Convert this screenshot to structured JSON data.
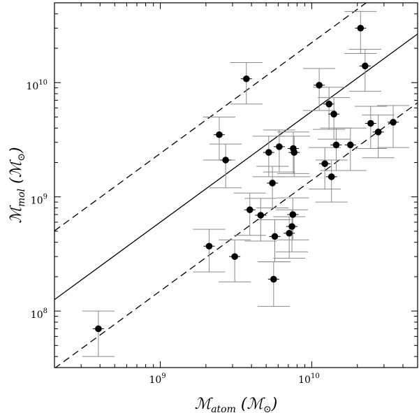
{
  "chart_data": {
    "type": "scatter",
    "title": "",
    "xscale": "log",
    "yscale": "log",
    "xlim": [
      200000000.0,
      50000000000.0
    ],
    "ylim": [
      32000000.0,
      50000000000.0
    ],
    "x_ticks": [
      {
        "value": 1000000000.0,
        "label": "10",
        "exp": "9"
      },
      {
        "value": 10000000000.0,
        "label": "10",
        "exp": "10"
      }
    ],
    "y_ticks": [
      {
        "value": 100000000.0,
        "label": "10",
        "exp": "8"
      },
      {
        "value": 1000000000.0,
        "label": "10",
        "exp": "9"
      },
      {
        "value": 10000000000.0,
        "label": "10",
        "exp": "10"
      }
    ],
    "xlabel": {
      "main": "ℳ",
      "sub": "atom",
      "paren_open": " (ℳ",
      "sub2": "⊙",
      "paren_close": ")"
    },
    "ylabel": {
      "main": "ℳ",
      "sub": "mol",
      "paren_open": " (ℳ",
      "sub2": "⊙",
      "paren_close": ")"
    },
    "fit_line": {
      "style": "solid",
      "slope": 0.97,
      "intercept_at_1e9": 600000000.0
    },
    "scatter_lines": [
      {
        "style": "dashed",
        "slope": 0.97,
        "intercept_at_1e9": 2400000000.0
      },
      {
        "style": "dashed",
        "slope": 0.97,
        "intercept_at_1e9": 150000000.0
      }
    ],
    "points": [
      {
        "x": 390000000.0,
        "y": 70000000.0,
        "ylo": 40000000.0,
        "yhi": 100000000.0
      },
      {
        "x": 2100000000.0,
        "y": 370000000.0,
        "ylo": 220000000.0,
        "yhi": 520000000.0
      },
      {
        "x": 2450000000.0,
        "y": 3500000000.0,
        "ylo": 2100000000.0,
        "yhi": 5000000000.0
      },
      {
        "x": 2700000000.0,
        "y": 2100000000.0,
        "ylo": 1200000000.0,
        "yhi": 2900000000.0
      },
      {
        "x": 3100000000.0,
        "y": 300000000.0,
        "ylo": 180000000.0,
        "yhi": 420000000.0
      },
      {
        "x": 3700000000.0,
        "y": 10800000000.0,
        "ylo": 6500000000.0,
        "yhi": 15000000000.0
      },
      {
        "x": 3900000000.0,
        "y": 770000000.0,
        "ylo": 460000000.0,
        "yhi": 1080000000.0
      },
      {
        "x": 4600000000.0,
        "y": 690000000.0,
        "ylo": 410000000.0,
        "yhi": 970000000.0
      },
      {
        "x": 5200000000.0,
        "y": 2450000000.0,
        "ylo": 1500000000.0,
        "yhi": 3400000000.0
      },
      {
        "x": 5500000000.0,
        "y": 1320000000.0,
        "ylo": 800000000.0,
        "yhi": 1850000000.0
      },
      {
        "x": 5600000000.0,
        "y": 190000000.0,
        "ylo": 110000000.0,
        "yhi": 270000000.0
      },
      {
        "x": 5700000000.0,
        "y": 450000000.0,
        "ylo": 270000000.0,
        "yhi": 630000000.0
      },
      {
        "x": 6100000000.0,
        "y": 2750000000.0,
        "ylo": 1650000000.0,
        "yhi": 3850000000.0
      },
      {
        "x": 7100000000.0,
        "y": 480000000.0,
        "ylo": 290000000.0,
        "yhi": 670000000.0
      },
      {
        "x": 7400000000.0,
        "y": 550000000.0,
        "ylo": 330000000.0,
        "yhi": 770000000.0
      },
      {
        "x": 7500000000.0,
        "y": 700000000.0,
        "ylo": 420000000.0,
        "yhi": 980000000.0
      },
      {
        "x": 7550000000.0,
        "y": 2650000000.0,
        "ylo": 1600000000.0,
        "yhi": 3700000000.0
      },
      {
        "x": 7650000000.0,
        "y": 2450000000.0,
        "ylo": 1500000000.0,
        "yhi": 3400000000.0
      },
      {
        "x": 11200000000.0,
        "y": 9500000000.0,
        "ylo": 5700000000.0,
        "yhi": 13300000000.0
      },
      {
        "x": 12200000000.0,
        "y": 1950000000.0,
        "ylo": 1170000000.0,
        "yhi": 2700000000.0
      },
      {
        "x": 13000000000.0,
        "y": 6500000000.0,
        "ylo": 3900000000.0,
        "yhi": 9100000000.0
      },
      {
        "x": 13500000000.0,
        "y": 1500000000.0,
        "ylo": 900000000.0,
        "yhi": 2100000000.0
      },
      {
        "x": 14000000000.0,
        "y": 5300000000.0,
        "ylo": 3200000000.0,
        "yhi": 7400000000.0
      },
      {
        "x": 14500000000.0,
        "y": 2850000000.0,
        "ylo": 1700000000.0,
        "yhi": 4000000000.0
      },
      {
        "x": 18000000000.0,
        "y": 2850000000.0,
        "ylo": 1700000000.0,
        "yhi": 4000000000.0
      },
      {
        "x": 21000000000.0,
        "y": 30000000000.0,
        "ylo": 18000000000.0,
        "yhi": 42000000000.0
      },
      {
        "x": 22500000000.0,
        "y": 14000000000.0,
        "ylo": 8400000000.0,
        "yhi": 19600000000.0
      },
      {
        "x": 24500000000.0,
        "y": 4400000000.0,
        "ylo": 2650000000.0,
        "yhi": 6200000000.0
      },
      {
        "x": 27500000000.0,
        "y": 3700000000.0,
        "ylo": 2200000000.0,
        "yhi": 5200000000.0
      },
      {
        "x": 34500000000.0,
        "y": 4500000000.0,
        "ylo": 2700000000.0,
        "yhi": 6300000000.0
      }
    ]
  }
}
